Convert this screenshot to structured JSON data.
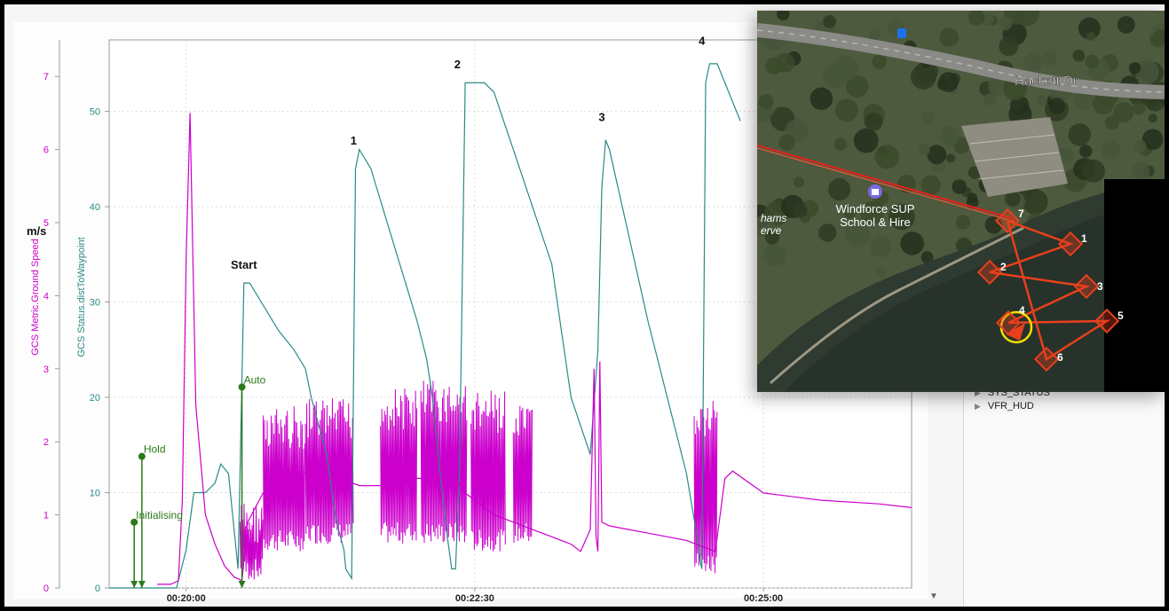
{
  "chart_data": {
    "type": "line",
    "y_left_label": "GCS Metric.Ground Speed",
    "y_left_unit": "m/s",
    "y_left_ticks": [
      0,
      1,
      2,
      3,
      4,
      5,
      6,
      7
    ],
    "y_left_range": [
      0,
      7.5
    ],
    "y_right_label": "GCS Status.distToWaypoint",
    "y_right_ticks": [
      0,
      10,
      20,
      30,
      40,
      50
    ],
    "y_right_range": [
      0,
      57.5
    ],
    "x_ticks": [
      "00:20:00",
      "00:22:30",
      "00:25:00"
    ],
    "x_tick_seconds": [
      1200,
      1350,
      1500
    ],
    "x_range": [
      1160,
      1577
    ],
    "grid": true,
    "colors": {
      "speed": "#cc00cc",
      "dist": "#2a8a86",
      "mode": "#2b7a1a"
    },
    "mode_events": [
      {
        "label": "Initialising",
        "t": 1173,
        "speed": 0.9
      },
      {
        "label": "Hold",
        "t": 1177,
        "speed": 1.8
      },
      {
        "label": "Auto",
        "t": 1229,
        "speed": 2.75
      }
    ],
    "waypoint_annotations": [
      {
        "label": "Start",
        "t": 1230,
        "dist": 33.5
      },
      {
        "label": "1",
        "t": 1287,
        "dist": 46.5
      },
      {
        "label": "2",
        "t": 1341,
        "dist": 54.5
      },
      {
        "label": "3",
        "t": 1416,
        "dist": 49
      },
      {
        "label": "4",
        "t": 1468,
        "dist": 57
      }
    ],
    "series": [
      {
        "name": "GCS Status.distToWaypoint",
        "axis": "right",
        "x": [
          1160,
          1195,
          1200,
          1204,
          1210,
          1215,
          1218,
          1222,
          1224,
          1227,
          1230,
          1233,
          1236,
          1242,
          1248,
          1256,
          1262,
          1265,
          1273,
          1278,
          1282,
          1283,
          1286,
          1288,
          1290,
          1296,
          1302,
          1308,
          1314,
          1320,
          1325,
          1328,
          1332,
          1336,
          1338,
          1340,
          1342,
          1345,
          1350,
          1355,
          1360,
          1365,
          1370,
          1380,
          1390,
          1400,
          1410,
          1414,
          1416,
          1418,
          1420,
          1430,
          1440,
          1450,
          1460,
          1465,
          1467,
          1468,
          1470,
          1472,
          1474,
          1476,
          1480,
          1488
        ],
        "y": [
          0,
          0,
          4,
          10,
          10,
          11,
          13,
          12,
          8,
          2,
          32,
          32,
          31,
          29,
          27,
          25,
          23,
          20,
          14,
          7,
          4,
          2,
          1,
          44,
          46,
          44,
          40,
          36,
          32,
          28,
          24,
          20,
          12,
          5,
          2,
          2,
          12,
          53,
          53,
          53,
          52,
          49,
          46,
          40,
          34,
          20,
          14,
          25,
          42,
          47,
          46,
          37,
          28,
          20,
          12,
          6,
          3,
          2,
          53,
          55,
          55,
          55,
          53,
          49
        ]
      },
      {
        "name": "GCS Metric.Ground Speed",
        "axis": "left",
        "x": [
          1185,
          1192,
          1196,
          1198,
          1200,
          1202,
          1205,
          1210,
          1215,
          1220,
          1225,
          1229,
          1232,
          1240,
          1250,
          1260,
          1270,
          1280,
          1290,
          1300,
          1310,
          1320,
          1330,
          1340,
          1345,
          1350,
          1360,
          1370,
          1380,
          1390,
          1400,
          1405,
          1410,
          1412,
          1413,
          1414,
          1415,
          1416,
          1420,
          1430,
          1440,
          1450,
          1460,
          1465,
          1470,
          1475,
          1480,
          1484,
          1500,
          1530,
          1560,
          1577
        ],
        "y": [
          0.05,
          0.05,
          0.1,
          1.2,
          4.5,
          6.5,
          2.5,
          1.0,
          0.6,
          0.3,
          0.15,
          0.1,
          0.9,
          1.3,
          1.5,
          1.6,
          1.5,
          1.5,
          1.4,
          1.4,
          1.4,
          1.5,
          1.5,
          1.5,
          1.3,
          1.2,
          1.0,
          0.9,
          0.8,
          0.7,
          0.6,
          0.5,
          0.8,
          3.0,
          0.7,
          0.5,
          3.1,
          0.9,
          0.85,
          0.8,
          0.75,
          0.7,
          0.65,
          0.6,
          0.55,
          0.5,
          1.5,
          1.6,
          1.3,
          1.2,
          1.15,
          1.1
        ]
      }
    ],
    "speed_noise_bands": [
      {
        "t0": 1228,
        "t1": 1240,
        "lo": 0.1,
        "hi": 1.2
      },
      {
        "t0": 1240,
        "t1": 1262,
        "lo": 0.5,
        "hi": 2.5
      },
      {
        "t0": 1262,
        "t1": 1287,
        "lo": 0.6,
        "hi": 2.6
      },
      {
        "t0": 1301,
        "t1": 1320,
        "lo": 0.6,
        "hi": 2.75
      },
      {
        "t0": 1322,
        "t1": 1346,
        "lo": 0.6,
        "hi": 2.85
      },
      {
        "t0": 1348,
        "t1": 1366,
        "lo": 0.5,
        "hi": 2.7
      },
      {
        "t0": 1370,
        "t1": 1380,
        "lo": 0.6,
        "hi": 2.5
      },
      {
        "t0": 1464,
        "t1": 1476,
        "lo": 0.2,
        "hi": 2.6
      }
    ]
  },
  "map": {
    "road_label": "Hackett Dr",
    "poi_name": "Windforce SUP",
    "poi_sub": "School & Hire",
    "partial_label_1": "hams",
    "partial_label_2": "erve",
    "route_color": "#e8401c",
    "waypoints": [
      {
        "label": "7"
      },
      {
        "label": "1"
      },
      {
        "label": "2"
      },
      {
        "label": "3"
      },
      {
        "label": "4"
      },
      {
        "label": "5"
      },
      {
        "label": "6"
      }
    ]
  },
  "side_panel": {
    "items": [
      "SYS_STATUS",
      "VFR_HUD"
    ]
  }
}
